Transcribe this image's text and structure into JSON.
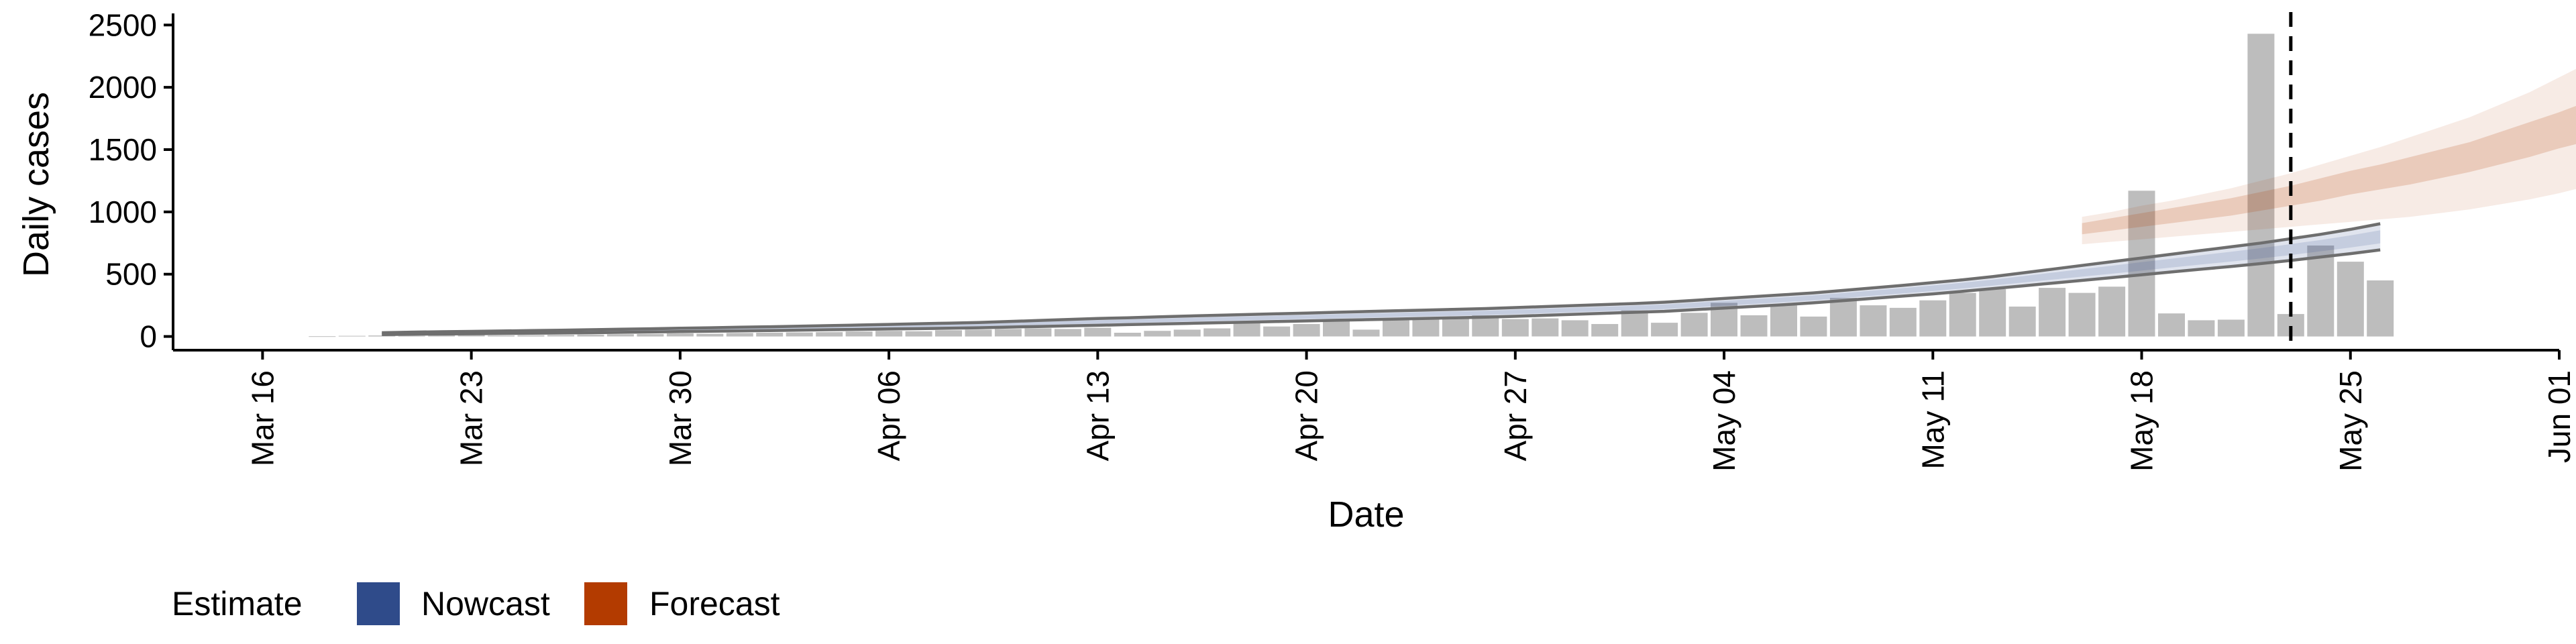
{
  "chart_data": {
    "type": "bar",
    "xlabel": "Date",
    "ylabel": "Daily cases",
    "x_range": [
      "2020-03-13",
      "2020-06-01"
    ],
    "ylim": [
      -110,
      2550
    ],
    "yticks": [
      0,
      500,
      1000,
      1500,
      2000,
      2500
    ],
    "xticks": [
      {
        "date": "2020-03-16",
        "label": "Mar 16"
      },
      {
        "date": "2020-03-23",
        "label": "Mar 23"
      },
      {
        "date": "2020-03-30",
        "label": "Mar 30"
      },
      {
        "date": "2020-04-06",
        "label": "Apr 06"
      },
      {
        "date": "2020-04-13",
        "label": "Apr 13"
      },
      {
        "date": "2020-04-20",
        "label": "Apr 20"
      },
      {
        "date": "2020-04-27",
        "label": "Apr 27"
      },
      {
        "date": "2020-05-04",
        "label": "May 04"
      },
      {
        "date": "2020-05-11",
        "label": "May 11"
      },
      {
        "date": "2020-05-18",
        "label": "May 18"
      },
      {
        "date": "2020-05-25",
        "label": "May 25"
      },
      {
        "date": "2020-06-01",
        "label": "Jun 01"
      }
    ],
    "grid": false,
    "legend_position": "bottom-left",
    "vline_date": "2020-05-23",
    "bars": {
      "start_date": "2020-03-18",
      "color": "#bdbdbd",
      "values": [
        2,
        5,
        8,
        5,
        10,
        12,
        8,
        10,
        12,
        15,
        18,
        20,
        25,
        22,
        28,
        30,
        32,
        35,
        40,
        45,
        42,
        50,
        55,
        60,
        65,
        60,
        70,
        30,
        45,
        55,
        65,
        120,
        80,
        100,
        130,
        55,
        130,
        140,
        150,
        170,
        140,
        145,
        130,
        100,
        210,
        110,
        190,
        270,
        170,
        250,
        160,
        310,
        250,
        230,
        290,
        350,
        380,
        240,
        390,
        350,
        400,
        1170,
        185,
        130,
        135,
        2430,
        180,
        730,
        600,
        450
      ]
    },
    "series": [
      {
        "name": "Nowcast",
        "color": "#2f4b8a",
        "start_date": "2020-03-20",
        "upper": [
          30,
          35,
          38,
          41,
          44,
          47,
          50,
          54,
          58,
          62,
          66,
          70,
          74,
          78,
          82,
          87,
          92,
          97,
          102,
          107,
          112,
          120,
          128,
          136,
          144,
          150,
          157,
          164,
          170,
          176,
          182,
          188,
          194,
          200,
          206,
          212,
          218,
          224,
          232,
          240,
          248,
          256,
          264,
          275,
          290,
          305,
          320,
          335,
          350,
          370,
          390,
          410,
          432,
          455,
          480,
          510,
          540,
          570,
          600,
          630,
          660,
          690,
          720,
          750,
          785,
          820,
          860,
          905
        ],
        "lower": [
          15,
          18,
          20,
          22,
          24,
          26,
          28,
          30,
          33,
          36,
          39,
          42,
          45,
          48,
          51,
          54,
          57,
          60,
          63,
          66,
          70,
          75,
          80,
          85,
          90,
          95,
          100,
          105,
          110,
          115,
          120,
          125,
          130,
          135,
          140,
          145,
          150,
          155,
          162,
          170,
          178,
          186,
          194,
          202,
          215,
          228,
          241,
          255,
          270,
          288,
          306,
          324,
          342,
          362,
          384,
          406,
          428,
          450,
          472,
          495,
          518,
          540,
          562,
          585,
          610,
          638,
          665,
          695
        ]
      },
      {
        "name": "Forecast",
        "color": "#b33b00",
        "start_date": "2020-05-16",
        "outer_upper": [
          960,
          1000,
          1050,
          1090,
          1140,
          1190,
          1250,
          1310,
          1380,
          1450,
          1520,
          1600,
          1680,
          1760,
          1860,
          1960,
          2080,
          2200,
          2300
        ],
        "inner_upper": [
          910,
          950,
          990,
          1030,
          1070,
          1110,
          1160,
          1210,
          1270,
          1330,
          1380,
          1440,
          1500,
          1560,
          1640,
          1720,
          1800,
          1890,
          1980
        ],
        "inner_lower": [
          820,
          850,
          880,
          910,
          940,
          970,
          1010,
          1050,
          1090,
          1140,
          1180,
          1220,
          1270,
          1320,
          1380,
          1440,
          1510,
          1570,
          1620
        ],
        "outer_lower": [
          740,
          760,
          780,
          800,
          820,
          840,
          860,
          880,
          900,
          920,
          940,
          960,
          990,
          1020,
          1060,
          1100,
          1150,
          1210,
          1280
        ]
      }
    ],
    "legend": {
      "title": "Estimate",
      "entries": [
        {
          "name": "Nowcast",
          "color": "#2f4b8a"
        },
        {
          "name": "Forecast",
          "color": "#b33b00"
        }
      ]
    }
  }
}
